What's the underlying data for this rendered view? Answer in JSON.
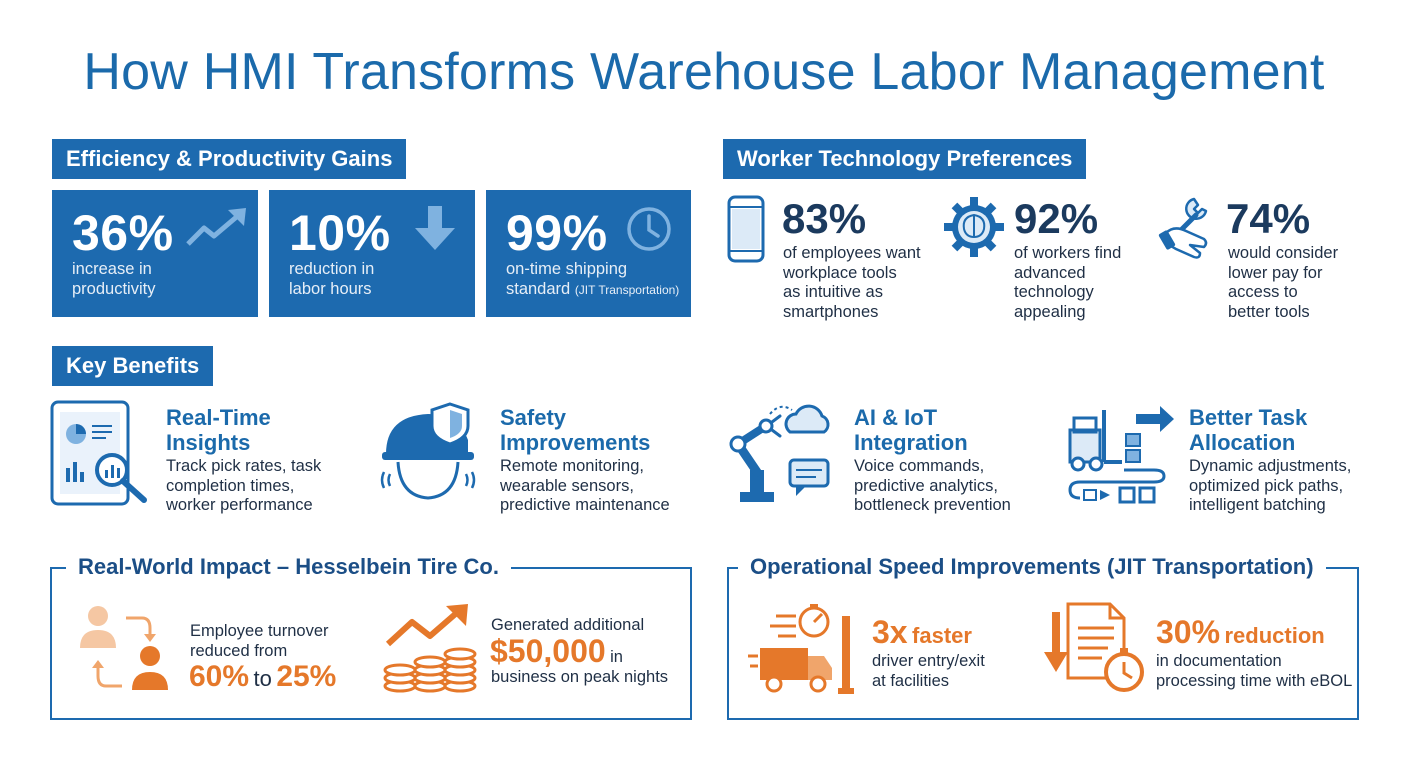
{
  "title": "How HMI Transforms Warehouse Labor Management",
  "efficiency": {
    "heading": "Efficiency & Productivity Gains",
    "stats": [
      {
        "value": "36%",
        "line1": "increase in",
        "line2": "productivity",
        "icon": "trending-up-icon"
      },
      {
        "value": "10%",
        "line1": "reduction in",
        "line2": "labor hours",
        "icon": "arrow-down-icon"
      },
      {
        "value": "99%",
        "line1": "on-time shipping",
        "line2": "standard",
        "note": "(JIT Transportation)",
        "icon": "clock-icon"
      }
    ]
  },
  "preferences": {
    "heading": "Worker Technology Preferences",
    "items": [
      {
        "value": "83%",
        "lines": [
          "of employees want",
          "workplace tools",
          "as intuitive as",
          "smartphones"
        ],
        "icon": "smartphone-icon"
      },
      {
        "value": "92%",
        "lines": [
          "of workers find",
          "advanced",
          "technology",
          "appealing"
        ],
        "icon": "gear-brain-icon"
      },
      {
        "value": "74%",
        "lines": [
          "would consider",
          "lower pay for",
          "access to",
          "better tools"
        ],
        "icon": "hand-wrench-icon"
      }
    ]
  },
  "benefits": {
    "heading": "Key Benefits",
    "items": [
      {
        "title1": "Real-Time",
        "title2": "Insights",
        "lines": [
          "Track pick rates, task",
          "completion times,",
          "worker performance"
        ],
        "icon": "tablet-analytics-icon"
      },
      {
        "title1": "Safety",
        "title2": "Improvements",
        "lines": [
          "Remote monitoring,",
          "wearable sensors,",
          "predictive maintenance"
        ],
        "icon": "hardhat-shield-icon"
      },
      {
        "title1": "AI & IoT",
        "title2": "Integration",
        "lines": [
          "Voice commands,",
          "predictive analytics,",
          "bottleneck prevention"
        ],
        "icon": "robot-arm-cloud-icon"
      },
      {
        "title1": "Better Task",
        "title2": "Allocation",
        "lines": [
          "Dynamic adjustments,",
          "optimized pick paths,",
          "intelligent batching"
        ],
        "icon": "forklift-flow-icon"
      }
    ]
  },
  "impact": {
    "heading": "Real-World Impact – Hesselbein Tire Co.",
    "turnover": {
      "line1": "Employee turnover",
      "line2": "reduced from",
      "from": "60%",
      "to_word": "to",
      "to": "25%",
      "icon": "people-cycle-icon"
    },
    "business": {
      "line1": "Generated additional",
      "amount": "$50,000",
      "in_word": "in",
      "line3": "business on peak nights",
      "icon": "coins-growth-icon"
    }
  },
  "speed": {
    "heading": "Operational Speed Improvements (JIT Transportation)",
    "driver": {
      "value": "3x",
      "suffix": "faster",
      "line1": "driver entry/exit",
      "line2": "at facilities",
      "icon": "fast-truck-icon"
    },
    "docs": {
      "value": "30%",
      "suffix": "reduction",
      "line1": "in documentation",
      "line2": "processing time with eBOL",
      "icon": "document-timer-icon"
    }
  },
  "colors": {
    "primary": "#1d6aaf",
    "accent": "#e5782a",
    "dark": "#1b3a5e"
  }
}
